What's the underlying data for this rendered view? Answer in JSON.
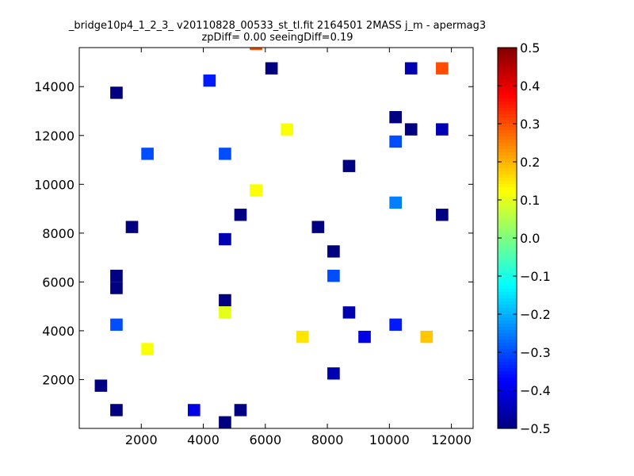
{
  "chart_data": {
    "type": "heatmap",
    "title": "_bridge10p4_1_2_3_ v20110828_00533_st_tl.fit 2164501 2MASS j_m - apermag3",
    "subtitle": "zpDiff= 0.00 seeingDiff=0.19",
    "xlabel": "",
    "ylabel": "",
    "xlim": [
      0,
      12700
    ],
    "ylim": [
      0,
      15600
    ],
    "x_ticks": [
      2000,
      4000,
      6000,
      8000,
      10000,
      12000
    ],
    "y_ticks": [
      2000,
      4000,
      6000,
      8000,
      10000,
      12000,
      14000
    ],
    "grid": false,
    "colormap": "jet",
    "color_range": [
      -0.5,
      0.5
    ],
    "colorbar_ticks": [
      "0.5",
      "0.4",
      "0.3",
      "0.2",
      "0.1",
      "0.0",
      "−0.1",
      "−0.2",
      "−0.3",
      "−0.4",
      "−0.5"
    ],
    "bin_size": [
      400,
      500
    ],
    "cells": [
      [
        500,
        1500,
        -0.5
      ],
      [
        1000,
        500,
        -0.5
      ],
      [
        1000,
        5500,
        -0.5
      ],
      [
        1000,
        6000,
        -0.5
      ],
      [
        1000,
        13500,
        -0.5
      ],
      [
        1500,
        8000,
        -0.5
      ],
      [
        3500,
        500,
        -0.4
      ],
      [
        4500,
        0,
        -0.5
      ],
      [
        4500,
        5000,
        -0.5
      ],
      [
        4500,
        7500,
        -0.45
      ],
      [
        5000,
        500,
        -0.5
      ],
      [
        5000,
        8500,
        -0.5
      ],
      [
        6000,
        14500,
        -0.5
      ],
      [
        7500,
        8000,
        -0.5
      ],
      [
        8000,
        7000,
        -0.5
      ],
      [
        8000,
        2000,
        -0.45
      ],
      [
        8500,
        4500,
        -0.45
      ],
      [
        8500,
        10500,
        -0.5
      ],
      [
        9000,
        3500,
        -0.4
      ],
      [
        10000,
        12500,
        -0.5
      ],
      [
        10500,
        12000,
        -0.5
      ],
      [
        10500,
        14500,
        -0.45
      ],
      [
        11500,
        12000,
        -0.45
      ],
      [
        11500,
        8500,
        -0.5
      ],
      [
        1000,
        4000,
        -0.3
      ],
      [
        2000,
        11000,
        -0.3
      ],
      [
        4000,
        14000,
        -0.35
      ],
      [
        4500,
        11000,
        -0.3
      ],
      [
        8000,
        6000,
        -0.3
      ],
      [
        10000,
        4000,
        -0.35
      ],
      [
        10000,
        9000,
        -0.25
      ],
      [
        10000,
        11500,
        -0.3
      ],
      [
        5500,
        15500,
        0.3
      ],
      [
        11500,
        14500,
        0.3
      ],
      [
        7000,
        3500,
        0.15
      ],
      [
        11000,
        3500,
        0.18
      ],
      [
        2000,
        3000,
        0.12
      ],
      [
        5500,
        9500,
        0.12
      ],
      [
        6500,
        12000,
        0.12
      ],
      [
        4500,
        4500,
        0.1
      ]
    ]
  }
}
